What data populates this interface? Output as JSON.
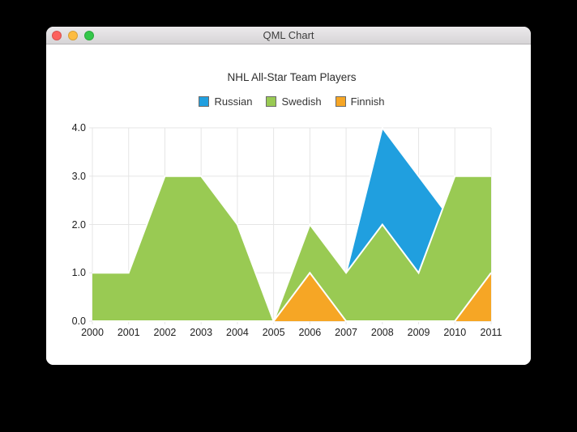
{
  "window": {
    "title": "QML Chart",
    "traffic_lights": [
      {
        "name": "close-button",
        "color": "#fc615d"
      },
      {
        "name": "minimize-button",
        "color": "#fdbc40"
      },
      {
        "name": "zoom-button",
        "color": "#34c749"
      }
    ]
  },
  "chart_data": {
    "type": "area",
    "title": "NHL All-Star Team Players",
    "x": [
      2000,
      2001,
      2002,
      2003,
      2004,
      2005,
      2006,
      2007,
      2008,
      2009,
      2010,
      2011
    ],
    "series": [
      {
        "name": "Russian",
        "color": "#209fdf",
        "values": [
          1,
          1,
          1,
          1,
          1,
          0,
          1,
          1,
          4,
          3,
          2,
          1
        ]
      },
      {
        "name": "Swedish",
        "color": "#99ca53",
        "values": [
          1,
          1,
          3,
          3,
          2,
          0,
          2,
          1,
          2,
          1,
          3,
          3
        ]
      },
      {
        "name": "Finnish",
        "color": "#f6a625",
        "values": [
          0,
          0,
          0,
          0,
          0,
          0,
          1,
          0,
          0,
          0,
          0,
          1
        ]
      }
    ],
    "xlim": [
      2000,
      2011
    ],
    "ylim": [
      0,
      4
    ],
    "x_tick_labels": [
      "2000",
      "2001",
      "2002",
      "2003",
      "2004",
      "2005",
      "2006",
      "2007",
      "2008",
      "2009",
      "2010",
      "2011"
    ],
    "y_tick_labels": [
      "0.0",
      "1.0",
      "2.0",
      "3.0",
      "4.0"
    ],
    "grid": true,
    "legend_position": "top",
    "series_border_color": "#ffffff",
    "grid_color": "#e5e5e5",
    "legend_marker_border": "#6b6b6b"
  }
}
